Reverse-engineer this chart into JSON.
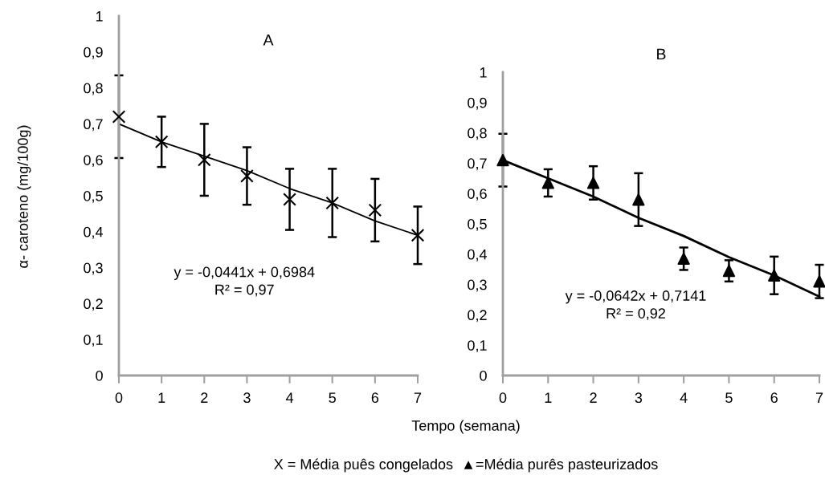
{
  "chart_data": [
    {
      "type": "scatter",
      "title": "A",
      "ylabel": "α- caroteno (mg/100g)",
      "xlabel": "Tempo (semana)",
      "x": [
        0,
        1,
        2,
        3,
        4,
        5,
        6,
        7
      ],
      "xlim": [
        0,
        7
      ],
      "xticks": [
        0,
        1,
        2,
        3,
        4,
        5,
        6,
        7
      ],
      "ylim": [
        0,
        1
      ],
      "yticks": [
        {
          "value": 0,
          "label": "0"
        },
        {
          "value": 0.1,
          "label": "0,1"
        },
        {
          "value": 0.2,
          "label": "0,2"
        },
        {
          "value": 0.3,
          "label": "0,3"
        },
        {
          "value": 0.4,
          "label": "0,4"
        },
        {
          "value": 0.5,
          "label": "0,5"
        },
        {
          "value": 0.6,
          "label": "0,6"
        },
        {
          "value": 0.7,
          "label": "0,7"
        },
        {
          "value": 0.8,
          "label": "0,8"
        },
        {
          "value": 0.9,
          "label": "0,9"
        },
        {
          "value": 1,
          "label": "1"
        }
      ],
      "grid": false,
      "legend": false,
      "series": [
        {
          "color": "#000000",
          "marker": "cross",
          "values": [
            0.72,
            0.65,
            0.6,
            0.555,
            0.49,
            0.48,
            0.46,
            0.39
          ],
          "errors": [
            0.115,
            0.07,
            0.1,
            0.08,
            0.085,
            0.095,
            0.087,
            0.08
          ]
        },
        {
          "type": "line",
          "color": "#000000",
          "marker": "none",
          "line_style": "solid",
          "values": [
            0.7,
            0.65,
            0.61,
            0.57,
            0.52,
            0.48,
            0.43,
            0.39
          ]
        }
      ],
      "annotations": [
        "y = -0,0441x + 0,6984\nR² = 0,97"
      ]
    },
    {
      "type": "scatter",
      "title": "B",
      "x": [
        0,
        1,
        2,
        3,
        4,
        5,
        6,
        7
      ],
      "xlim": [
        0,
        7
      ],
      "xticks": [
        0,
        1,
        2,
        3,
        4,
        5,
        6,
        7
      ],
      "ylim": [
        0,
        1
      ],
      "yticks": [
        {
          "value": 0,
          "label": "0"
        },
        {
          "value": 0.1,
          "label": "0,1"
        },
        {
          "value": 0.2,
          "label": "0,2"
        },
        {
          "value": 0.3,
          "label": "0,3"
        },
        {
          "value": 0.4,
          "label": "0,4"
        },
        {
          "value": 0.5,
          "label": "0,5"
        },
        {
          "value": 0.6,
          "label": "0,6"
        },
        {
          "value": 0.7,
          "label": "0,7"
        },
        {
          "value": 0.8,
          "label": "0,8"
        },
        {
          "value": 0.9,
          "label": "0,9"
        },
        {
          "value": 1,
          "label": "1"
        }
      ],
      "grid": false,
      "legend": false,
      "series": [
        {
          "color": "#000000",
          "marker": "triangle",
          "values": [
            0.71,
            0.635,
            0.635,
            0.58,
            0.385,
            0.345,
            0.33,
            0.31
          ],
          "errors": [
            0.087,
            0.045,
            0.055,
            0.087,
            0.037,
            0.035,
            0.062,
            0.055
          ]
        },
        {
          "type": "line",
          "color": "#000000",
          "marker": "none",
          "line_style": "solid",
          "values": [
            0.71,
            0.65,
            0.59,
            0.52,
            0.46,
            0.39,
            0.33,
            0.26
          ]
        }
      ],
      "annotations": [
        "y = -0,0642x + 0,7141\nR² = 0,92",
        "X = Média puês congelados  ▲=Média purês pasteurizados"
      ]
    }
  ]
}
